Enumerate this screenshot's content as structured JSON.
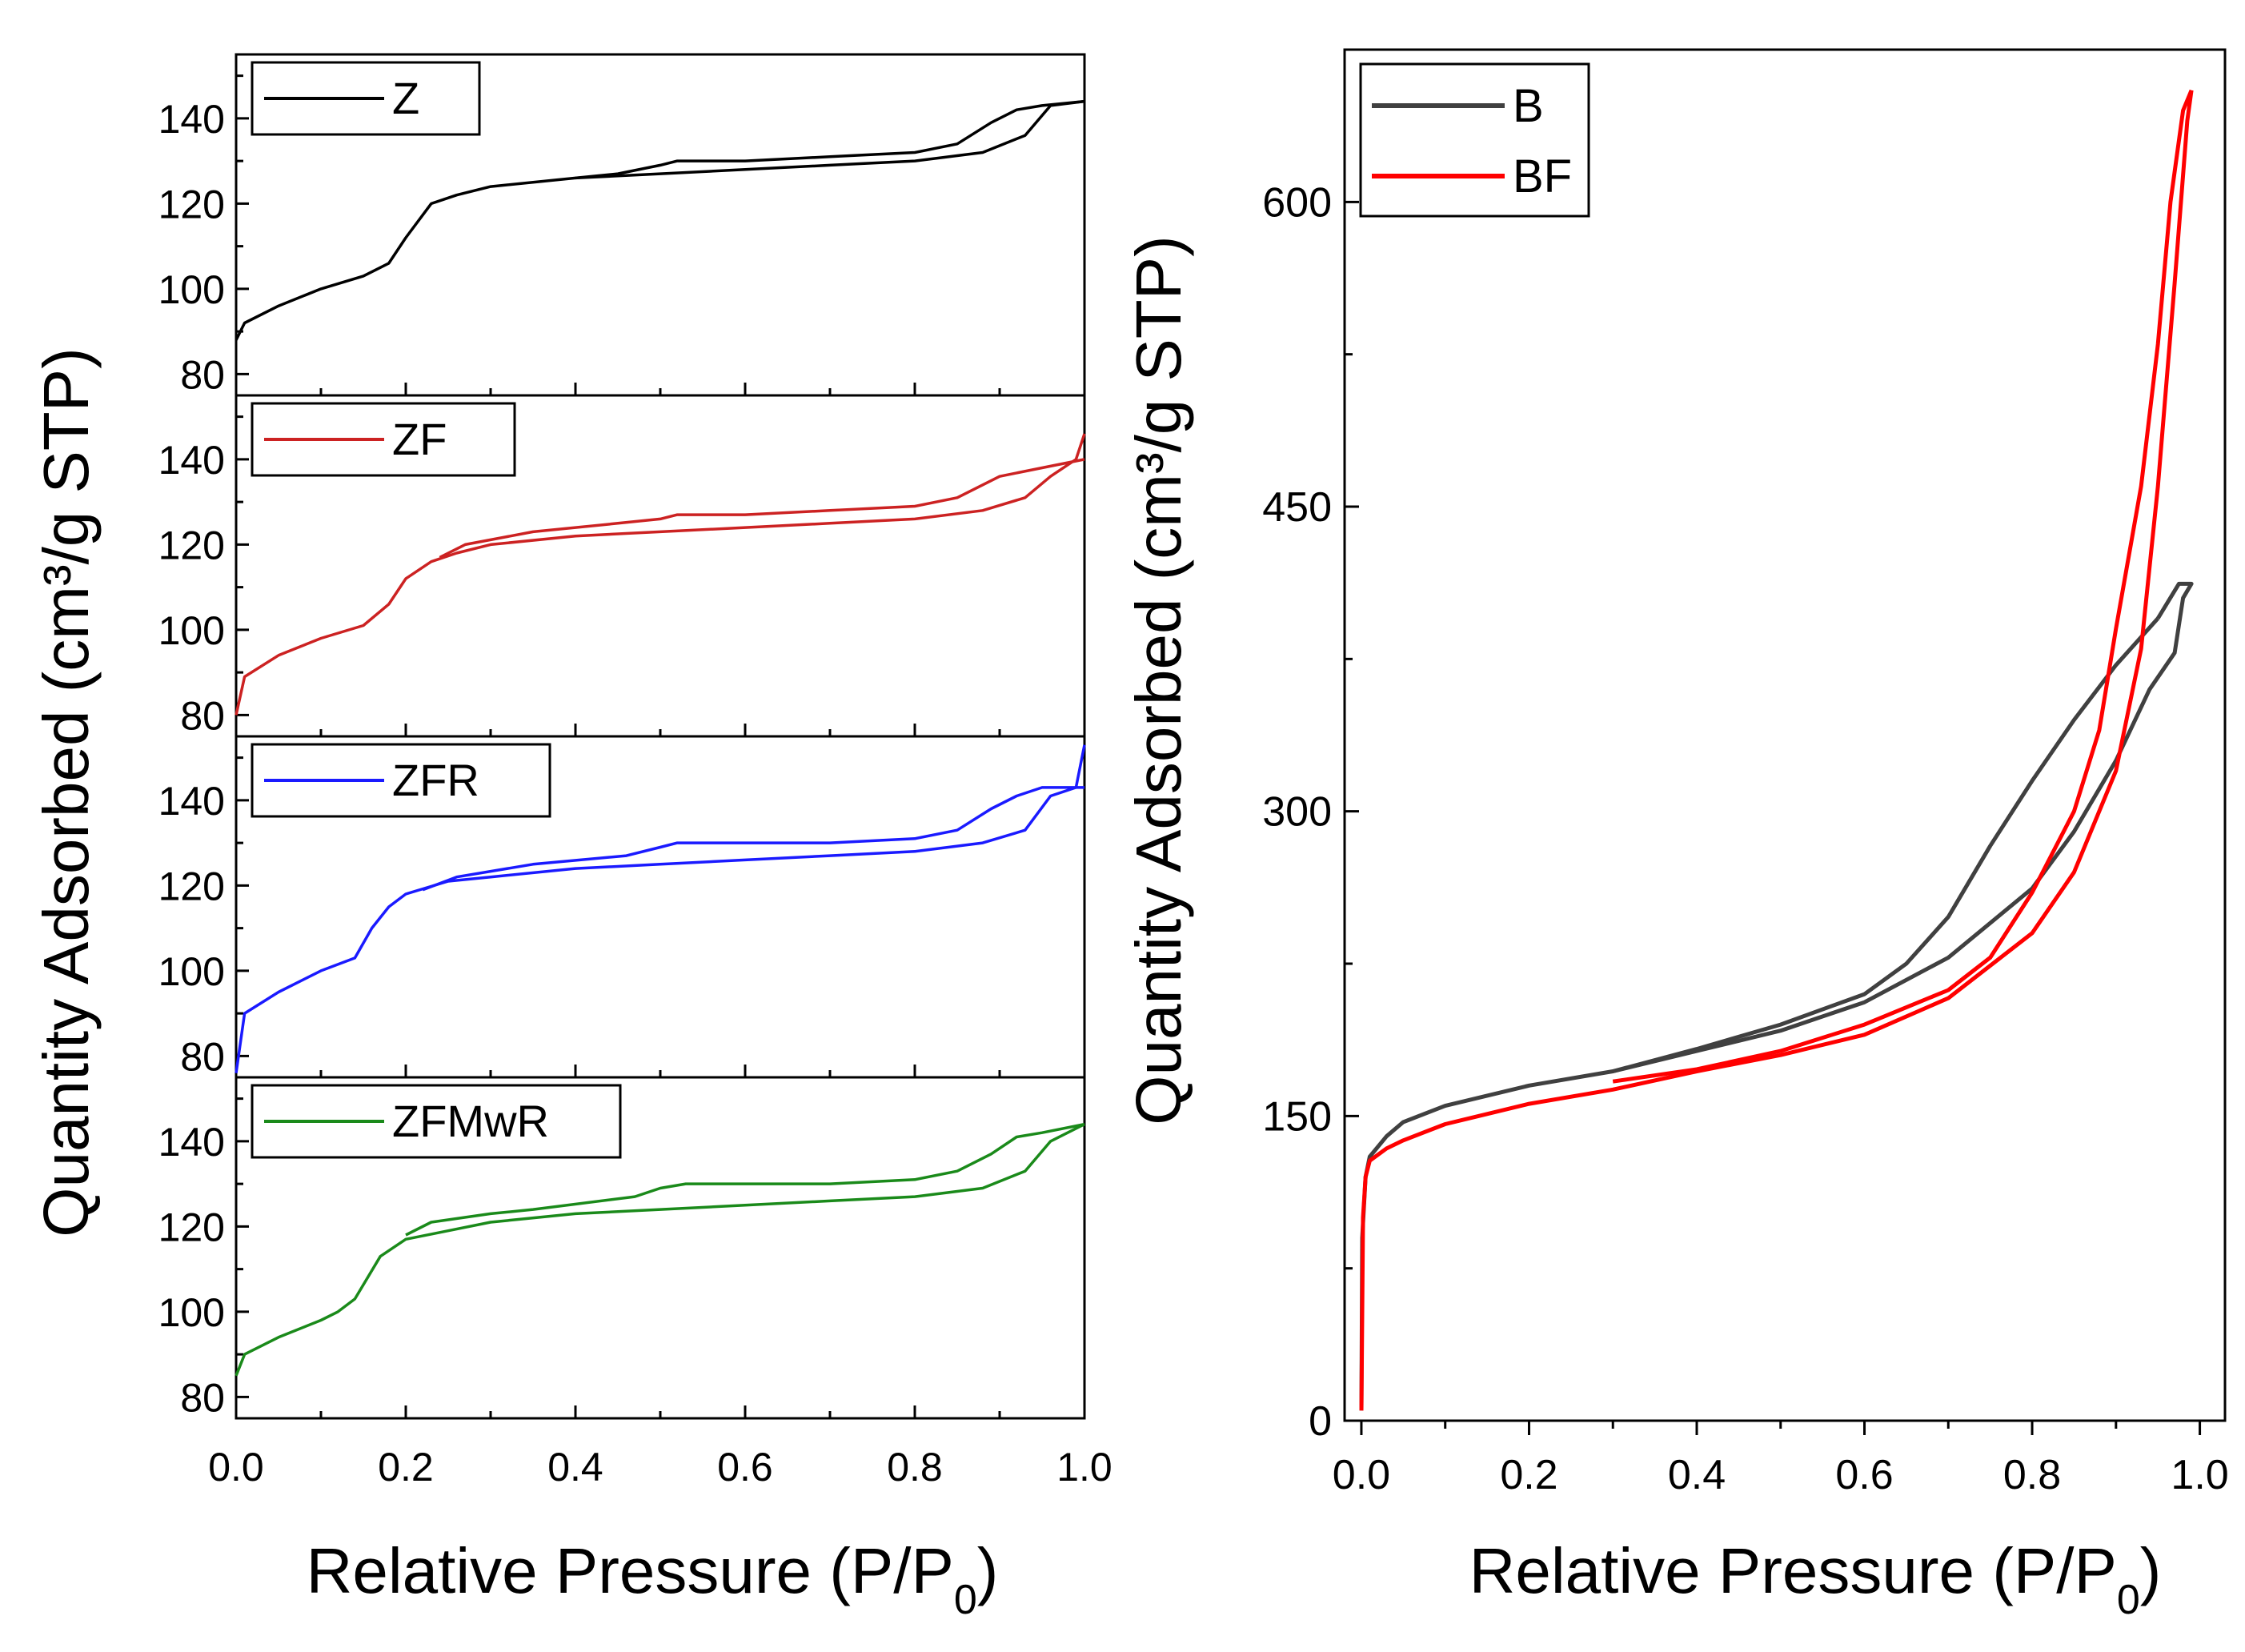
{
  "chart_data": [
    {
      "type": "line",
      "panel": "left-stacked",
      "xlabel_main": "Relative Pressure (P/P",
      "xlabel_sub": "0",
      "xlabel_close": ")",
      "ylabel": "Quantity Adsorbed (cm³/g STP)",
      "xlim": [
        0,
        1
      ],
      "x_ticks": [
        "0.0",
        "0.2",
        "0.4",
        "0.6",
        "0.8",
        "1.0"
      ],
      "subplots": [
        {
          "name": "Z",
          "color": "#000000",
          "ylim": [
            75,
            155
          ],
          "y_ticks": [
            "80",
            "100",
            "120",
            "140"
          ],
          "adsorption": [
            [
              0.0,
              88
            ],
            [
              0.01,
              92
            ],
            [
              0.05,
              96
            ],
            [
              0.1,
              100
            ],
            [
              0.15,
              103
            ],
            [
              0.18,
              106
            ],
            [
              0.2,
              112
            ],
            [
              0.23,
              120
            ],
            [
              0.26,
              122
            ],
            [
              0.3,
              124
            ],
            [
              0.4,
              126
            ],
            [
              0.5,
              127
            ],
            [
              0.6,
              128
            ],
            [
              0.7,
              129
            ],
            [
              0.8,
              130
            ],
            [
              0.88,
              132
            ],
            [
              0.93,
              136
            ],
            [
              0.96,
              143
            ],
            [
              1.0,
              144
            ]
          ],
          "desorption": [
            [
              1.0,
              144
            ],
            [
              0.95,
              143
            ],
            [
              0.92,
              142
            ],
            [
              0.89,
              139
            ],
            [
              0.85,
              134
            ],
            [
              0.8,
              132
            ],
            [
              0.7,
              131
            ],
            [
              0.6,
              130
            ],
            [
              0.52,
              130
            ],
            [
              0.5,
              129
            ],
            [
              0.45,
              127
            ],
            [
              0.4,
              126
            ]
          ]
        },
        {
          "name": "ZF",
          "color": "#cc2222",
          "ylim": [
            75,
            155
          ],
          "y_ticks": [
            "80",
            "100",
            "120",
            "140"
          ],
          "adsorption": [
            [
              0.0,
              80
            ],
            [
              0.01,
              89
            ],
            [
              0.05,
              94
            ],
            [
              0.1,
              98
            ],
            [
              0.15,
              101
            ],
            [
              0.18,
              106
            ],
            [
              0.2,
              112
            ],
            [
              0.23,
              116
            ],
            [
              0.26,
              118
            ],
            [
              0.3,
              120
            ],
            [
              0.4,
              122
            ],
            [
              0.5,
              123
            ],
            [
              0.6,
              124
            ],
            [
              0.7,
              125
            ],
            [
              0.8,
              126
            ],
            [
              0.88,
              128
            ],
            [
              0.93,
              131
            ],
            [
              0.96,
              136
            ],
            [
              0.99,
              140
            ],
            [
              1.0,
              146
            ]
          ],
          "desorption": [
            [
              1.0,
              140
            ],
            [
              0.95,
              138
            ],
            [
              0.9,
              136
            ],
            [
              0.85,
              131
            ],
            [
              0.8,
              129
            ],
            [
              0.7,
              128
            ],
            [
              0.6,
              127
            ],
            [
              0.52,
              127
            ],
            [
              0.5,
              126
            ],
            [
              0.45,
              125
            ],
            [
              0.35,
              123
            ],
            [
              0.27,
              120
            ],
            [
              0.24,
              117
            ]
          ]
        },
        {
          "name": "ZFR",
          "color": "#1a1aff",
          "ylim": [
            75,
            155
          ],
          "y_ticks": [
            "80",
            "100",
            "120",
            "140"
          ],
          "adsorption": [
            [
              0.0,
              76
            ],
            [
              0.01,
              90
            ],
            [
              0.05,
              95
            ],
            [
              0.1,
              100
            ],
            [
              0.14,
              103
            ],
            [
              0.16,
              110
            ],
            [
              0.18,
              115
            ],
            [
              0.2,
              118
            ],
            [
              0.25,
              121
            ],
            [
              0.3,
              122
            ],
            [
              0.4,
              124
            ],
            [
              0.5,
              125
            ],
            [
              0.6,
              126
            ],
            [
              0.7,
              127
            ],
            [
              0.8,
              128
            ],
            [
              0.88,
              130
            ],
            [
              0.93,
              133
            ],
            [
              0.96,
              141
            ],
            [
              0.99,
              143
            ],
            [
              1.0,
              153
            ]
          ],
          "desorption": [
            [
              1.0,
              143
            ],
            [
              0.95,
              143
            ],
            [
              0.92,
              141
            ],
            [
              0.89,
              138
            ],
            [
              0.85,
              133
            ],
            [
              0.8,
              131
            ],
            [
              0.7,
              130
            ],
            [
              0.6,
              130
            ],
            [
              0.52,
              130
            ],
            [
              0.5,
              129
            ],
            [
              0.46,
              127
            ],
            [
              0.35,
              125
            ],
            [
              0.26,
              122
            ],
            [
              0.22,
              119
            ]
          ]
        },
        {
          "name": "ZFMwR",
          "color": "#1a8a1a",
          "ylim": [
            75,
            155
          ],
          "y_ticks": [
            "80",
            "100",
            "120",
            "140"
          ],
          "adsorption": [
            [
              0.0,
              85
            ],
            [
              0.01,
              90
            ],
            [
              0.05,
              94
            ],
            [
              0.1,
              98
            ],
            [
              0.12,
              100
            ],
            [
              0.14,
              103
            ],
            [
              0.17,
              113
            ],
            [
              0.2,
              117
            ],
            [
              0.25,
              119
            ],
            [
              0.3,
              121
            ],
            [
              0.4,
              123
            ],
            [
              0.5,
              124
            ],
            [
              0.6,
              125
            ],
            [
              0.7,
              126
            ],
            [
              0.8,
              127
            ],
            [
              0.88,
              129
            ],
            [
              0.93,
              133
            ],
            [
              0.96,
              140
            ],
            [
              1.0,
              144
            ]
          ],
          "desorption": [
            [
              1.0,
              144
            ],
            [
              0.95,
              142
            ],
            [
              0.92,
              141
            ],
            [
              0.89,
              137
            ],
            [
              0.85,
              133
            ],
            [
              0.8,
              131
            ],
            [
              0.7,
              130
            ],
            [
              0.6,
              130
            ],
            [
              0.53,
              130
            ],
            [
              0.5,
              129
            ],
            [
              0.47,
              127
            ],
            [
              0.35,
              124
            ],
            [
              0.3,
              123
            ],
            [
              0.23,
              121
            ],
            [
              0.2,
              118
            ]
          ]
        }
      ]
    },
    {
      "type": "line",
      "panel": "right",
      "xlabel_main": "Relative Pressure (P/P",
      "xlabel_sub": "0",
      "xlabel_close": ")",
      "ylabel": "Quantity Adsorbed (cm³/g STP)",
      "xlim": [
        -0.02,
        1.03
      ],
      "ylim": [
        0,
        675
      ],
      "x_ticks": [
        "0.0",
        "0.2",
        "0.4",
        "0.6",
        "0.8",
        "1.0"
      ],
      "y_ticks": [
        "0",
        "150",
        "300",
        "450",
        "600"
      ],
      "series": [
        {
          "name": "B",
          "color": "#404040",
          "adsorption": [
            [
              0.0,
              5
            ],
            [
              0.001,
              90
            ],
            [
              0.005,
              120
            ],
            [
              0.01,
              130
            ],
            [
              0.03,
              140
            ],
            [
              0.05,
              147
            ],
            [
              0.1,
              155
            ],
            [
              0.2,
              165
            ],
            [
              0.3,
              172
            ],
            [
              0.4,
              182
            ],
            [
              0.5,
              192
            ],
            [
              0.6,
              206
            ],
            [
              0.7,
              228
            ],
            [
              0.8,
              262
            ],
            [
              0.85,
              290
            ],
            [
              0.9,
              325
            ],
            [
              0.94,
              360
            ],
            [
              0.97,
              378
            ],
            [
              0.98,
              405
            ],
            [
              0.99,
              412
            ],
            [
              0.975,
              412
            ],
            [
              0.95,
              395
            ]
          ],
          "desorption": [
            [
              0.95,
              395
            ],
            [
              0.9,
              372
            ],
            [
              0.85,
              345
            ],
            [
              0.8,
              315
            ],
            [
              0.75,
              283
            ],
            [
              0.7,
              248
            ],
            [
              0.65,
              225
            ],
            [
              0.6,
              210
            ],
            [
              0.5,
              195
            ],
            [
              0.4,
              183
            ],
            [
              0.3,
              172
            ]
          ]
        },
        {
          "name": "BF",
          "color": "#ff0000",
          "adsorption": [
            [
              0.0,
              5
            ],
            [
              0.002,
              100
            ],
            [
              0.005,
              120
            ],
            [
              0.01,
              128
            ],
            [
              0.03,
              134
            ],
            [
              0.05,
              138
            ],
            [
              0.1,
              146
            ],
            [
              0.2,
              156
            ],
            [
              0.3,
              163
            ],
            [
              0.4,
              172
            ],
            [
              0.5,
              180
            ],
            [
              0.6,
              190
            ],
            [
              0.7,
              208
            ],
            [
              0.8,
              240
            ],
            [
              0.85,
              270
            ],
            [
              0.9,
              320
            ],
            [
              0.93,
              380
            ],
            [
              0.95,
              460
            ],
            [
              0.97,
              560
            ],
            [
              0.985,
              640
            ],
            [
              0.99,
              655
            ]
          ],
          "desorption": [
            [
              0.99,
              655
            ],
            [
              0.98,
              645
            ],
            [
              0.965,
              600
            ],
            [
              0.95,
              530
            ],
            [
              0.93,
              460
            ],
            [
              0.9,
              390
            ],
            [
              0.88,
              340
            ],
            [
              0.85,
              300
            ],
            [
              0.8,
              260
            ],
            [
              0.75,
              228
            ],
            [
              0.7,
              212
            ],
            [
              0.6,
              195
            ],
            [
              0.5,
              182
            ],
            [
              0.4,
              173
            ],
            [
              0.3,
              167
            ]
          ]
        }
      ]
    }
  ]
}
